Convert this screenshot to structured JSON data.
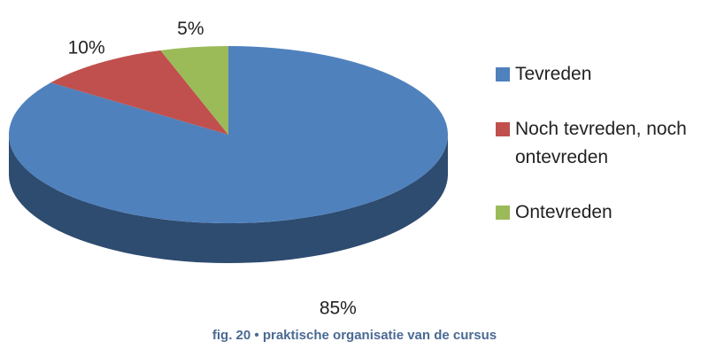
{
  "chart_data": {
    "type": "pie",
    "categories": [
      "Tevreden",
      "Noch tevreden, noch ontevreden",
      "Ontevreden"
    ],
    "values": [
      85,
      10,
      5
    ],
    "value_labels": [
      "85%",
      "10%",
      "5%"
    ],
    "colors": [
      "#4f81bd",
      "#c0504d",
      "#9bbb59"
    ],
    "side_colors": [
      "#2e4b70",
      "#7a2f2d",
      "#5f7536"
    ],
    "caption": "fig. 20 • praktische organisatie van de cursus",
    "legend": "right"
  }
}
